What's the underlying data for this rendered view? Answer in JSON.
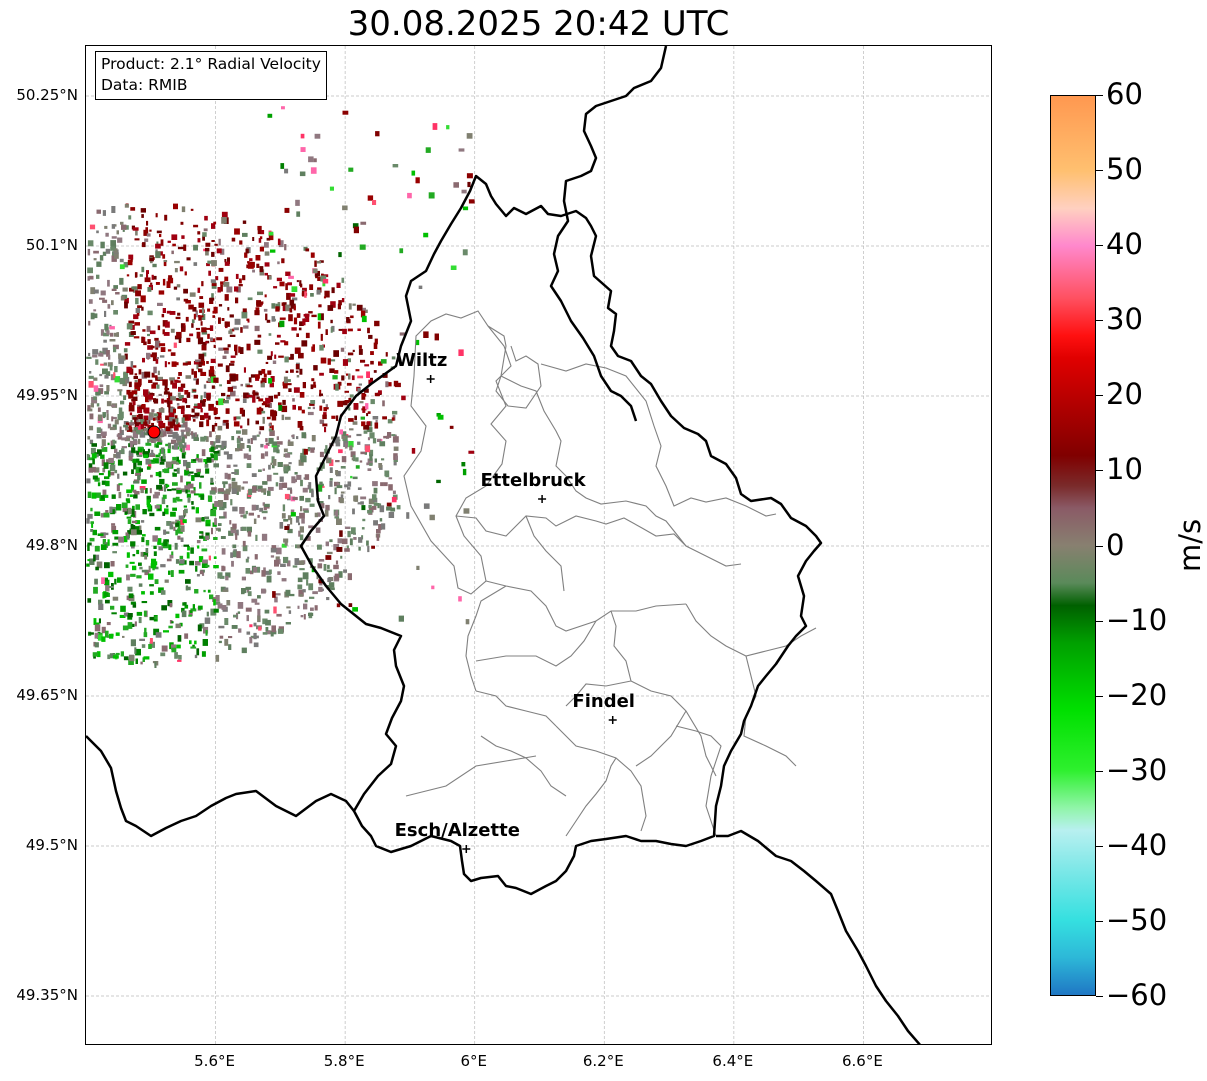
{
  "title": "30.08.2025 20:42 UTC",
  "info": {
    "product": "Product: 2.1° Radial Velocity",
    "data": "Data: RMIB"
  },
  "map": {
    "lon_range": [
      5.4,
      6.8
    ],
    "lat_range": [
      49.3,
      50.3
    ],
    "lat_ticks": [
      {
        "value": 50.25,
        "label": "50.25°N"
      },
      {
        "value": 50.1,
        "label": "50.1°N"
      },
      {
        "value": 49.95,
        "label": "49.95°N"
      },
      {
        "value": 49.8,
        "label": "49.8°N"
      },
      {
        "value": 49.65,
        "label": "49.65°N"
      },
      {
        "value": 49.5,
        "label": "49.5°N"
      },
      {
        "value": 49.35,
        "label": "49.35°N"
      }
    ],
    "lon_ticks": [
      {
        "value": 5.6,
        "label": "5.6°E"
      },
      {
        "value": 5.8,
        "label": "5.8°E"
      },
      {
        "value": 6.0,
        "label": "6°E"
      },
      {
        "value": 6.2,
        "label": "6.2°E"
      },
      {
        "value": 6.4,
        "label": "6.4°E"
      },
      {
        "value": 6.6,
        "label": "6.6°E"
      }
    ],
    "radar": {
      "lon": 5.505,
      "lat": 49.914
    },
    "cities": [
      {
        "name": "Wiltz",
        "lon": 5.932,
        "lat": 49.967
      },
      {
        "name": "Ettelbruck",
        "lon": 6.104,
        "lat": 49.847
      },
      {
        "name": "Findel",
        "lon": 6.213,
        "lat": 49.626
      },
      {
        "name": "Esch/Alzette",
        "lon": 5.987,
        "lat": 49.497
      }
    ],
    "colors": {
      "grid": "#bbbbbb",
      "border": "#000000",
      "districts": "#808080",
      "radar_marker": "#ff0000"
    }
  },
  "colorbar": {
    "unit": "m/s",
    "min": -60,
    "max": 60,
    "ticks": [
      {
        "value": 60,
        "label": "60"
      },
      {
        "value": 50,
        "label": "50"
      },
      {
        "value": 40,
        "label": "40"
      },
      {
        "value": 30,
        "label": "30"
      },
      {
        "value": 20,
        "label": "20"
      },
      {
        "value": 10,
        "label": "10"
      },
      {
        "value": 0,
        "label": "0"
      },
      {
        "value": -10,
        "label": "−10"
      },
      {
        "value": -20,
        "label": "−20"
      },
      {
        "value": -30,
        "label": "−30"
      },
      {
        "value": -40,
        "label": "−40"
      },
      {
        "value": -50,
        "label": "−50"
      },
      {
        "value": -60,
        "label": "−60"
      }
    ],
    "stops": [
      {
        "value": -60,
        "color": "#1f77c4"
      },
      {
        "value": -55,
        "color": "#2db8d8"
      },
      {
        "value": -50,
        "color": "#35e0e0"
      },
      {
        "value": -43,
        "color": "#80e8e8"
      },
      {
        "value": -38,
        "color": "#b8f0f0"
      },
      {
        "value": -35,
        "color": "#90f5a8"
      },
      {
        "value": -30,
        "color": "#2ef02e"
      },
      {
        "value": -22,
        "color": "#00e000"
      },
      {
        "value": -13,
        "color": "#00a000"
      },
      {
        "value": -8,
        "color": "#006000"
      },
      {
        "value": -5,
        "color": "#5a8a5a"
      },
      {
        "value": 0,
        "color": "#888070"
      },
      {
        "value": 5,
        "color": "#8a5a66"
      },
      {
        "value": 8,
        "color": "#7a2a2a"
      },
      {
        "value": 12,
        "color": "#800000"
      },
      {
        "value": 25,
        "color": "#e00000"
      },
      {
        "value": 28,
        "color": "#ff1010"
      },
      {
        "value": 33,
        "color": "#ff5060"
      },
      {
        "value": 40,
        "color": "#ff88cc"
      },
      {
        "value": 45,
        "color": "#ffd0c0"
      },
      {
        "value": 50,
        "color": "#ffc070"
      },
      {
        "value": 60,
        "color": "#ff9850"
      }
    ]
  }
}
